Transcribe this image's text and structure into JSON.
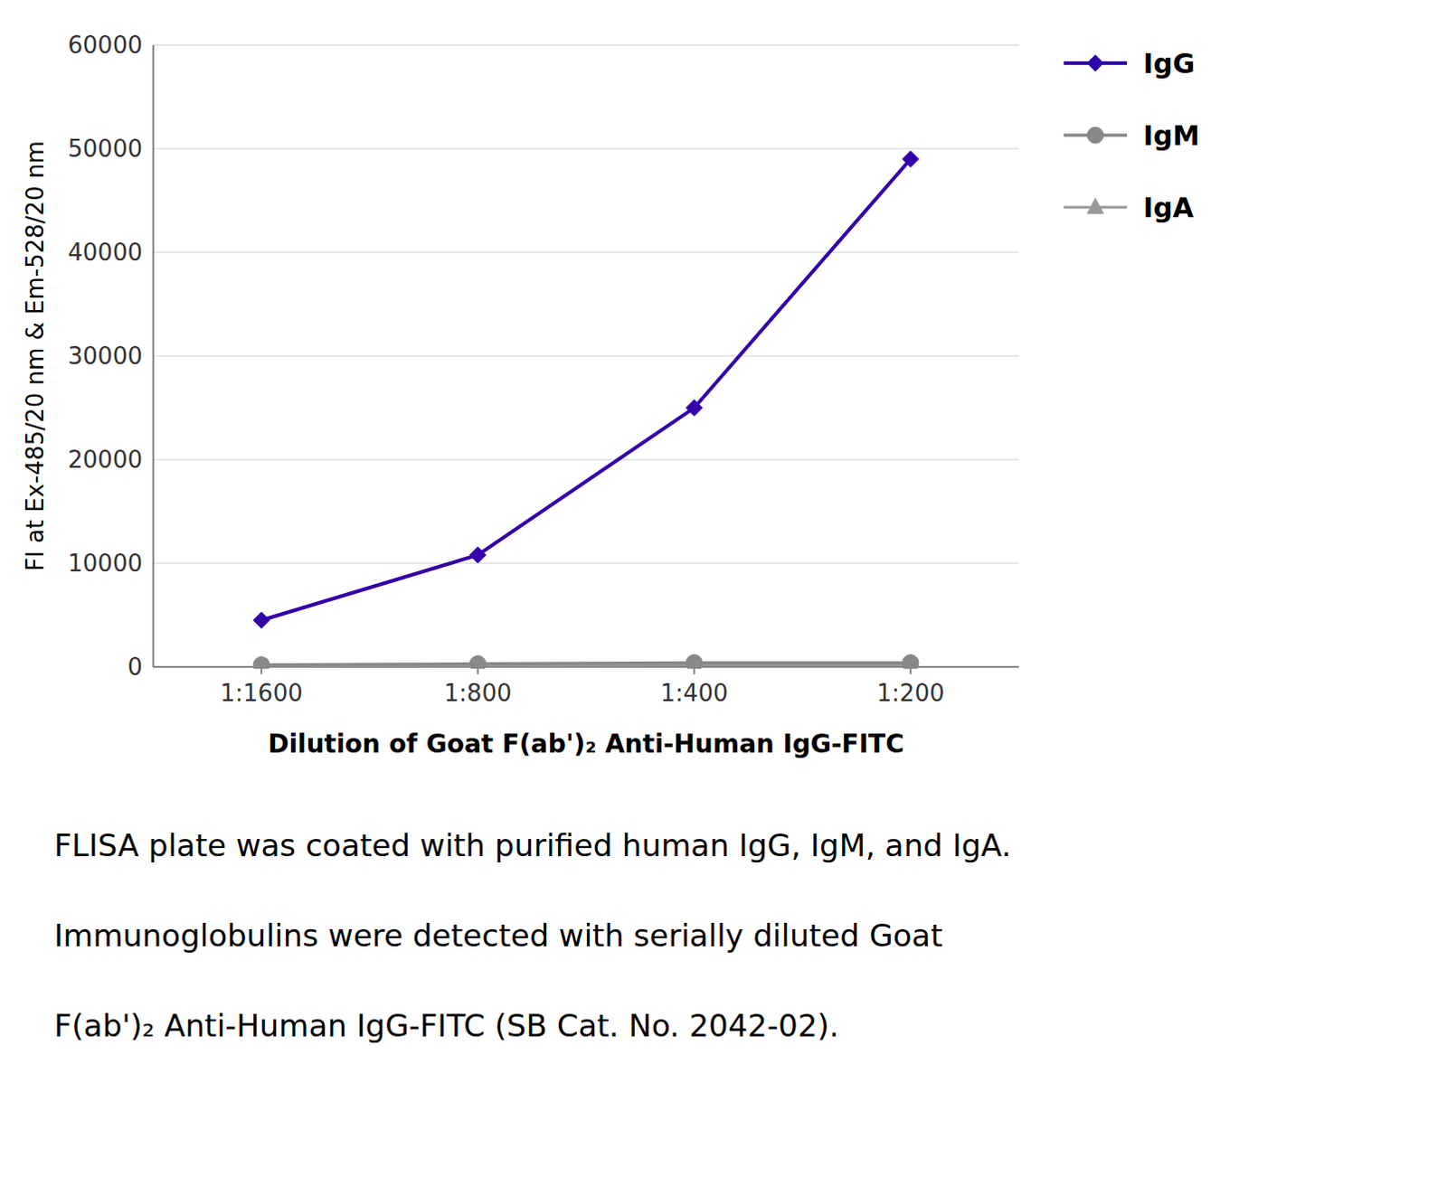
{
  "chart_data": {
    "type": "line",
    "xlabel": "Dilution of Goat F(ab')₂ Anti-Human IgG-FITC",
    "ylabel": "FI at Ex-485/20 nm & Em-528/20 nm",
    "categories": [
      "1:1600",
      "1:800",
      "1:400",
      "1:200"
    ],
    "series": [
      {
        "name": "IgG",
        "color": "#3300AA",
        "marker": "diamond",
        "values": [
          4500,
          10800,
          25000,
          49000
        ]
      },
      {
        "name": "IgM",
        "color": "#888888",
        "marker": "circle",
        "values": [
          200,
          300,
          400,
          400
        ]
      },
      {
        "name": "IgA",
        "color": "#999999",
        "marker": "triangle",
        "values": [
          100,
          150,
          200,
          200
        ]
      }
    ],
    "ylim": [
      0,
      60000
    ],
    "yticks": [
      0,
      10000,
      20000,
      30000,
      40000,
      50000,
      60000
    ],
    "grid": true,
    "legend": "right",
    "annotations": [
      "FLISA plate was coated with purified human IgG, IgM, and IgA.",
      "Immunoglobulins were detected with serially diluted Goat",
      "F(ab')₂ Anti-Human IgG-FITC (SB Cat. No. 2042-02)."
    ]
  }
}
